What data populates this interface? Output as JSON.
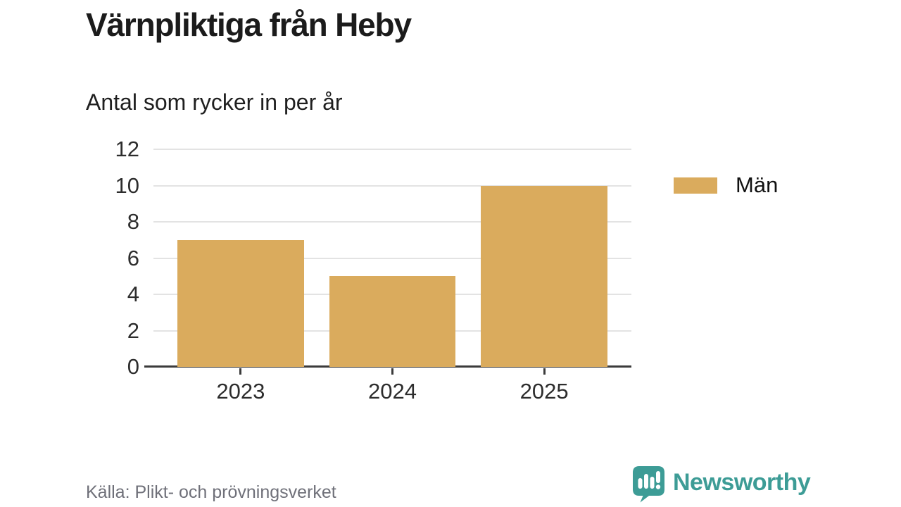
{
  "page": {
    "title": "Värnpliktiga från Heby",
    "subtitle": "Antal som rycker in per år",
    "source": "Källa: Plikt- och prövningsverket"
  },
  "brand": {
    "name": "Newsworthy",
    "color": "#3d9c96",
    "icon": "bar-chart-speech-bubble-icon"
  },
  "colors": {
    "bar": "#daab5d",
    "grid": "#e3e3e3",
    "axis": "#3b3b3b",
    "text": "#1b1b1b",
    "muted": "#6f7079"
  },
  "legend": {
    "items": [
      {
        "label": "Män",
        "color": "#daab5d"
      }
    ]
  },
  "chart_data": {
    "type": "bar",
    "categories": [
      "2023",
      "2024",
      "2025"
    ],
    "series": [
      {
        "name": "Män",
        "values": [
          7,
          5,
          10
        ],
        "color": "#daab5d"
      }
    ],
    "title": "Värnpliktiga från Heby",
    "subtitle": "Antal som rycker in per år",
    "xlabel": "",
    "ylabel": "",
    "ylim": [
      0,
      12
    ],
    "yticks": [
      0,
      2,
      4,
      6,
      8,
      10,
      12
    ],
    "grid": true,
    "legend_position": "right"
  }
}
